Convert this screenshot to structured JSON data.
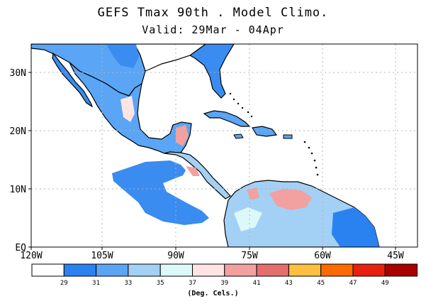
{
  "title": "GEFS Tmax 90th . Model Climo.",
  "subtitle": "Valid: 29Mar - 04Apr",
  "axes": {
    "lat_labels": [
      "30N",
      "20N",
      "10N",
      "EQ"
    ],
    "lon_labels": [
      "120W",
      "105W",
      "90W",
      "75W",
      "60W",
      "45W"
    ]
  },
  "colorbar": {
    "colors": [
      "#ffffff",
      "#2a82f0",
      "#5aa5f5",
      "#a3d0f5",
      "#dcf8f8",
      "#ffe4e4",
      "#f2a0a0",
      "#e66e6e",
      "#ffbf40",
      "#ff6a00",
      "#e82010",
      "#a80000"
    ],
    "ticks": [
      "29",
      "31",
      "33",
      "35",
      "37",
      "39",
      "41",
      "43",
      "45",
      "47",
      "49"
    ],
    "unit": "(Deg. Cels.)"
  },
  "colors": {
    "land_outline": "#000000",
    "grid": "#b5b5b5"
  }
}
